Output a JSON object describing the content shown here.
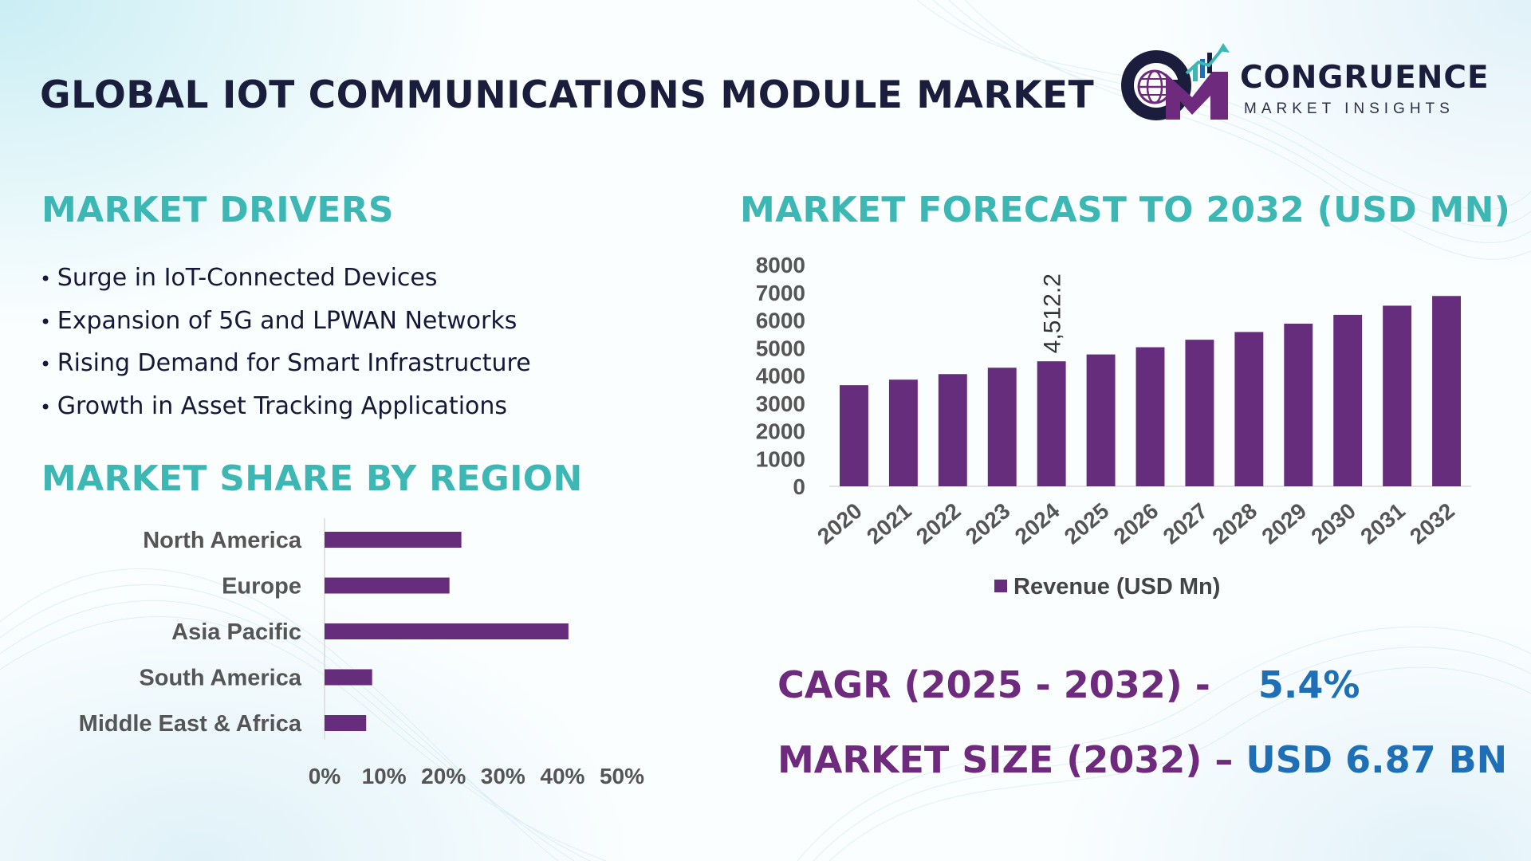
{
  "header": {
    "title": "GLOBAL IOT COMMUNICATIONS MODULE MARKET",
    "logo_word": "CONGRUENCE",
    "logo_sub": "MARKET INSIGHTS"
  },
  "drivers": {
    "heading": "MARKET DRIVERS",
    "items": [
      "Surge in IoT-Connected Devices",
      "Expansion of 5G and LPWAN Networks",
      "Rising Demand for Smart Infrastructure",
      "Growth in Asset Tracking Applications"
    ]
  },
  "region": {
    "heading": "MARKET SHARE BY REGION"
  },
  "forecast": {
    "heading": "MARKET FORECAST TO 2032 (USD MN)"
  },
  "stats": {
    "cagr_label": "CAGR (2025 - 2032) -",
    "cagr_value": "5.4%",
    "size_label": "MARKET SIZE (2032) –",
    "size_value": "USD 6.87 BN"
  },
  "colors": {
    "bar": "#652d7b",
    "heading": "#3cb7b4",
    "stat_label": "#6e2a7d",
    "stat_value": "#1e6fb5",
    "title": "#1a1e3c"
  },
  "chart_data": [
    {
      "type": "bar",
      "orientation": "horizontal",
      "title": "MARKET SHARE BY REGION",
      "categories": [
        "North America",
        "Europe",
        "Asia Pacific",
        "South America",
        "Middle East & Africa"
      ],
      "values": [
        23,
        21,
        41,
        8,
        7
      ],
      "xlim": [
        0,
        50
      ],
      "ticks": [
        "0%",
        "10%",
        "20%",
        "30%",
        "40%",
        "50%"
      ],
      "grid": false
    },
    {
      "type": "bar",
      "title": "MARKET FORECAST TO 2032 (USD MN)",
      "categories": [
        "2020",
        "2021",
        "2022",
        "2023",
        "2024",
        "2025",
        "2026",
        "2027",
        "2028",
        "2029",
        "2030",
        "2031",
        "2032"
      ],
      "series": [
        {
          "name": "Revenue (USD Mn)",
          "values": [
            3650,
            3850,
            4050,
            4280,
            4512.2,
            4760,
            5020,
            5290,
            5570,
            5870,
            6190,
            6520,
            6870
          ]
        }
      ],
      "data_labels": [
        {
          "category": "2024",
          "text": "4,512.2"
        }
      ],
      "ylim": [
        0,
        8000
      ],
      "yticks": [
        "0",
        "1000",
        "2000",
        "3000",
        "4000",
        "5000",
        "6000",
        "7000",
        "8000"
      ],
      "legend": "bottom",
      "grid": false
    }
  ]
}
